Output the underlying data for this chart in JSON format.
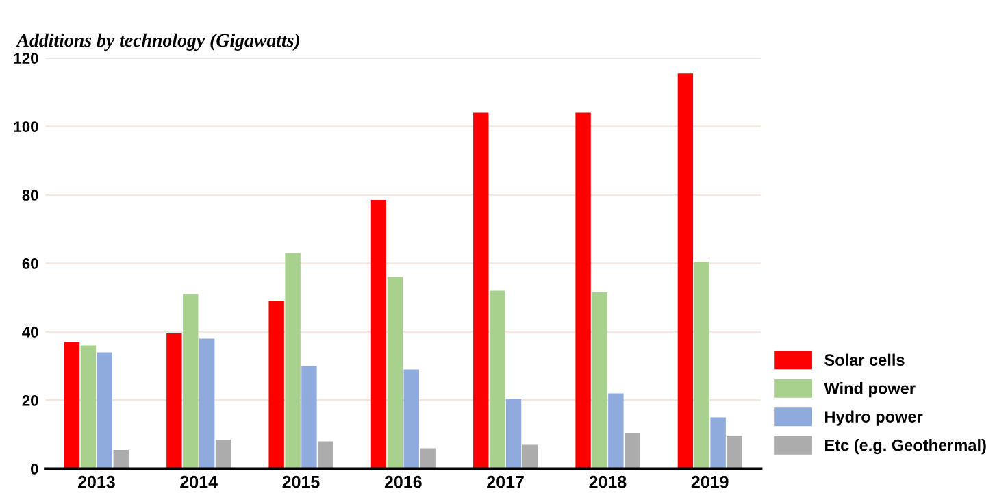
{
  "chart_data": {
    "type": "bar",
    "title": "Additions by technology (Gigawatts)",
    "categories": [
      "2013",
      "2014",
      "2015",
      "2016",
      "2017",
      "2018",
      "2019"
    ],
    "series": [
      {
        "name": "Solar cells",
        "color": "#ff0000",
        "values": [
          37,
          39.5,
          49,
          78.5,
          104,
          104,
          115.5
        ]
      },
      {
        "name": "Wind power",
        "color": "#a9d18e",
        "values": [
          36,
          51,
          63,
          56,
          52,
          51.5,
          60.5
        ]
      },
      {
        "name": "Hydro power",
        "color": "#8faadc",
        "values": [
          34,
          38,
          30,
          29,
          20.5,
          22,
          15
        ]
      },
      {
        "name": "Etc (e.g. Geothermal)",
        "color": "#acacac",
        "values": [
          5.5,
          8.5,
          8,
          6,
          7,
          10.5,
          9.5
        ]
      }
    ],
    "ylim": [
      0,
      120
    ],
    "yticks": [
      0,
      20,
      40,
      60,
      80,
      100,
      120
    ],
    "grid": "y",
    "legend": "right"
  }
}
